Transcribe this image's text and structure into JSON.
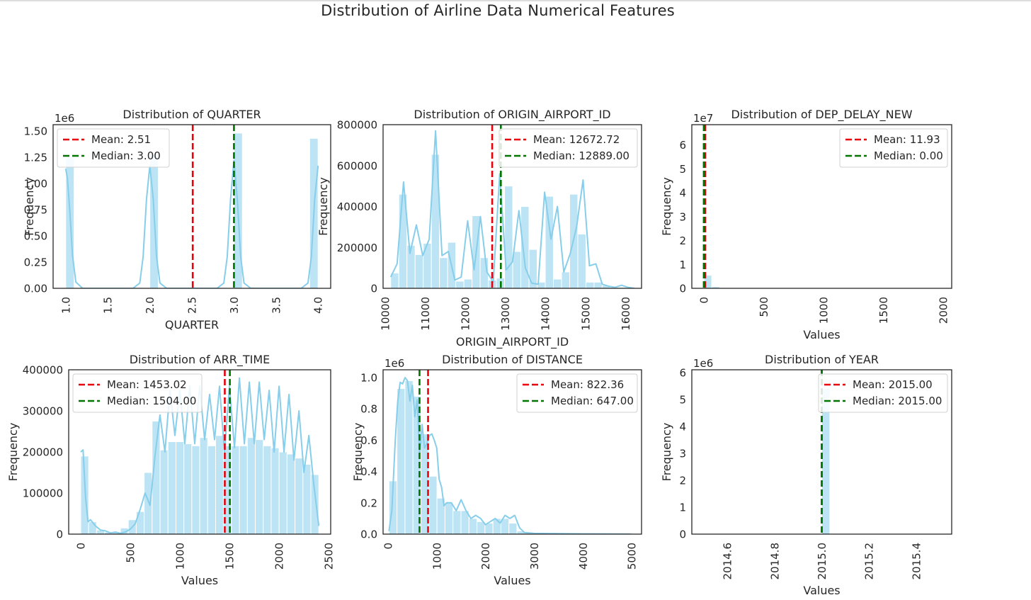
{
  "figure": {
    "suptitle": "Distribution of Airline Data Numerical Features"
  },
  "colors": {
    "bar": "#87ceeb",
    "kde": "#87ceeb",
    "mean": "#e8000b",
    "median": "#007500",
    "frame": "#262626"
  },
  "chart_data": [
    {
      "type": "bar",
      "title": "Distribution of QUARTER",
      "xlabel": "QUARTER",
      "ylabel": "Frequency",
      "xlim": [
        0.85,
        4.15
      ],
      "ylim": [
        0,
        1.56
      ],
      "y_offset_text": "1e6",
      "xticks": [
        1.0,
        1.5,
        2.0,
        2.5,
        3.0,
        3.5,
        4.0
      ],
      "xtick_labels": [
        "1.0",
        "1.5",
        "2.0",
        "2.5",
        "3.0",
        "3.5",
        "4.0"
      ],
      "yticks": [
        0,
        0.25,
        0.5,
        0.75,
        1.0,
        1.25,
        1.5
      ],
      "ytick_labels": [
        "0.00",
        "0.25",
        "0.50",
        "0.75",
        "1.00",
        "1.25",
        "1.50"
      ],
      "bars": {
        "start": 1.0,
        "width": 0.1,
        "values": [
          1.25,
          0,
          0,
          0,
          0,
          0,
          0,
          0,
          0,
          0,
          1.28,
          0,
          0,
          0,
          0,
          0,
          0,
          0,
          0,
          0,
          1.48,
          0,
          0,
          0,
          0,
          0,
          0,
          0,
          0,
          1.43
        ]
      },
      "kde": {
        "x": [
          1.0,
          1.02,
          1.05,
          1.08,
          1.12,
          1.2,
          1.8,
          1.88,
          1.92,
          1.96,
          2.0,
          2.04,
          2.08,
          2.12,
          2.2,
          2.8,
          2.88,
          2.92,
          2.96,
          3.0,
          3.04,
          3.08,
          3.12,
          3.2,
          3.8,
          3.88,
          3.92,
          3.96,
          4.0
        ],
        "y": [
          1.14,
          1.05,
          0.72,
          0.32,
          0.06,
          0,
          0,
          0.05,
          0.3,
          0.85,
          1.17,
          0.85,
          0.3,
          0.05,
          0,
          0,
          0.05,
          0.3,
          0.85,
          1.22,
          0.85,
          0.3,
          0.05,
          0,
          0,
          0.05,
          0.3,
          0.85,
          1.17
        ]
      },
      "mean": 2.51,
      "median": 3.0,
      "legend": {
        "placement": "upper left",
        "mean": "Mean: 2.51",
        "median": "Median: 3.00"
      }
    },
    {
      "type": "bar",
      "title": "Distribution of ORIGIN_AIRPORT_ID",
      "xlabel": "ORIGIN_AIRPORT_ID",
      "ylabel": "Frequency",
      "xlim": [
        9950,
        16400
      ],
      "ylim": [
        0,
        800000
      ],
      "y_offset_text": "",
      "xticks": [
        10000,
        11000,
        12000,
        13000,
        14000,
        15000,
        16000
      ],
      "xtick_labels": [
        "10000",
        "11000",
        "12000",
        "13000",
        "14000",
        "15000",
        "16000"
      ],
      "yticks": [
        0,
        200000,
        400000,
        600000,
        800000
      ],
      "ytick_labels": [
        "0",
        "200000",
        "400000",
        "600000",
        "800000"
      ],
      "bars": {
        "start": 10140,
        "width": 203,
        "values": [
          75000,
          460000,
          210000,
          165000,
          220000,
          655000,
          150000,
          225000,
          35000,
          45000,
          355000,
          150000,
          40000,
          50000,
          500000,
          180000,
          400000,
          190000,
          30000,
          450000,
          45000,
          80000,
          460000,
          265000,
          30000,
          30000,
          15000,
          5000,
          5000,
          2000
        ]
      },
      "kde": {
        "x": [
          10140,
          10300,
          10460,
          10620,
          10780,
          10940,
          11100,
          11260,
          11420,
          11580,
          11740,
          11900,
          12060,
          12220,
          12380,
          12540,
          12700,
          12860,
          13020,
          13180,
          13340,
          13500,
          13660,
          13820,
          13980,
          14140,
          14300,
          14460,
          14620,
          14780,
          14940,
          15100,
          15260,
          15420,
          15580,
          15740,
          15900,
          16060,
          16220
        ],
        "y": [
          55000,
          120000,
          520000,
          170000,
          310000,
          160000,
          240000,
          770000,
          160000,
          180000,
          40000,
          55000,
          330000,
          90000,
          350000,
          80000,
          30000,
          560000,
          90000,
          130000,
          380000,
          100000,
          25000,
          20000,
          470000,
          240000,
          400000,
          80000,
          170000,
          300000,
          530000,
          110000,
          120000,
          20000,
          10000,
          5000,
          15000,
          5000,
          0
        ]
      },
      "mean": 12672.72,
      "median": 12889.0,
      "legend": {
        "placement": "upper right",
        "mean": "Mean: 12672.72",
        "median": "Median: 12889.00"
      }
    },
    {
      "type": "bar",
      "title": "Distribution of DEP_DELAY_NEW",
      "xlabel": "Values",
      "ylabel": "Frequency",
      "xlim": [
        -100,
        2070
      ],
      "ylim": [
        0,
        68500000
      ],
      "y_offset_text": "1e7",
      "xticks": [
        0,
        500,
        1000,
        1500,
        2000
      ],
      "xtick_labels": [
        "0",
        "500",
        "1000",
        "1500",
        "2000"
      ],
      "yticks": [
        0,
        10000000,
        20000000,
        30000000,
        40000000,
        50000000,
        60000000
      ],
      "ytick_labels": [
        "0",
        "1",
        "2",
        "3",
        "4",
        "5",
        "6"
      ],
      "bars": {
        "start": 0,
        "width": 66,
        "values": [
          5500000,
          700000,
          200000,
          80000,
          30000,
          10000,
          5000,
          2000,
          1000,
          500
        ]
      },
      "kde": {
        "x": [],
        "y": []
      },
      "mean": 11.93,
      "median": 0.0,
      "legend": {
        "placement": "upper right",
        "mean": "Mean: 11.93",
        "median": "Median: 0.00"
      }
    },
    {
      "type": "bar",
      "title": "Distribution of ARR_TIME",
      "xlabel": "Values",
      "ylabel": "Frequency",
      "xlim": [
        -120,
        2520
      ],
      "ylim": [
        0,
        400000
      ],
      "y_offset_text": "",
      "xticks": [
        0,
        500,
        1000,
        1500,
        2000,
        2500
      ],
      "xtick_labels": [
        "0",
        "500",
        "1000",
        "1500",
        "2000",
        "2500"
      ],
      "yticks": [
        0,
        100000,
        200000,
        300000,
        400000
      ],
      "ytick_labels": [
        "0",
        "100000",
        "200000",
        "300000",
        "400000"
      ],
      "bars": {
        "start": 1,
        "width": 79.97,
        "values": [
          190000,
          30000,
          10000,
          5000,
          5000,
          15000,
          35000,
          55000,
          150000,
          275000,
          205000,
          225000,
          225000,
          220000,
          215000,
          235000,
          215000,
          240000,
          215000,
          215000,
          215000,
          235000,
          230000,
          215000,
          210000,
          200000,
          195000,
          185000,
          170000,
          145000
        ]
      },
      "kde": {
        "x": [
          1,
          25,
          50,
          75,
          100,
          150,
          200,
          250,
          300,
          350,
          400,
          450,
          500,
          550,
          600,
          650,
          700,
          750,
          800,
          850,
          900,
          950,
          1000,
          1050,
          1100,
          1150,
          1200,
          1250,
          1300,
          1350,
          1400,
          1450,
          1500,
          1550,
          1600,
          1650,
          1700,
          1750,
          1800,
          1850,
          1900,
          1950,
          2000,
          2050,
          2100,
          2150,
          2200,
          2250,
          2300,
          2350,
          2400
        ],
        "y": [
          200000,
          205000,
          90000,
          30000,
          35000,
          20000,
          10000,
          8000,
          3000,
          5000,
          2000,
          5000,
          12000,
          25000,
          60000,
          100000,
          70000,
          190000,
          290000,
          200000,
          350000,
          240000,
          350000,
          220000,
          360000,
          220000,
          360000,
          230000,
          340000,
          230000,
          360000,
          200000,
          360000,
          210000,
          380000,
          220000,
          370000,
          220000,
          370000,
          230000,
          350000,
          200000,
          360000,
          200000,
          340000,
          180000,
          300000,
          150000,
          240000,
          120000,
          20000
        ]
      },
      "mean": 1453.02,
      "median": 1504.0,
      "legend": {
        "placement": "upper left",
        "mean": "Mean: 1453.02",
        "median": "Median: 1504.00"
      }
    },
    {
      "type": "bar",
      "title": "Distribution of DISTANCE",
      "xlabel": "Values",
      "ylabel": "Frequency",
      "xlim": [
        -100,
        5200
      ],
      "ylim": [
        0,
        1.05
      ],
      "y_offset_text": "1e6",
      "xticks": [
        0,
        1000,
        2000,
        3000,
        4000,
        5000
      ],
      "xtick_labels": [
        "0",
        "1000",
        "2000",
        "3000",
        "4000",
        "5000"
      ],
      "yticks": [
        0,
        0.2,
        0.4,
        0.6,
        0.8,
        1.0
      ],
      "ytick_labels": [
        "0.0",
        "0.2",
        "0.4",
        "0.6",
        "0.8",
        "1.0"
      ],
      "bars": {
        "start": 21,
        "width": 164,
        "values": [
          0.34,
          0.93,
          0.98,
          0.88,
          0.64,
          0.37,
          0.23,
          0.2,
          0.15,
          0.15,
          0.1,
          0.08,
          0.07,
          0.1,
          0.1,
          0.07,
          0.02,
          0.01,
          0.005,
          0.005,
          0.005,
          0.005,
          0.004,
          0.004,
          0.004,
          0.003,
          0.003,
          0.003,
          0.002,
          0.002
        ]
      },
      "kde": {
        "x": [
          21,
          80,
          150,
          200,
          250,
          300,
          350,
          400,
          450,
          500,
          550,
          600,
          650,
          700,
          750,
          800,
          850,
          900,
          950,
          1000,
          1050,
          1100,
          1150,
          1200,
          1300,
          1400,
          1500,
          1600,
          1700,
          1800,
          1900,
          2000,
          2100,
          2200,
          2300,
          2400,
          2500,
          2600,
          2700,
          2800,
          3000,
          3500,
          4000,
          4500,
          4983
        ],
        "y": [
          0.02,
          0.15,
          0.6,
          0.85,
          0.97,
          0.96,
          1.0,
          0.98,
          0.85,
          0.95,
          0.75,
          0.86,
          0.5,
          0.7,
          0.55,
          0.58,
          0.63,
          0.64,
          0.6,
          0.55,
          0.35,
          0.3,
          0.18,
          0.2,
          0.2,
          0.15,
          0.22,
          0.15,
          0.1,
          0.12,
          0.1,
          0.06,
          0.08,
          0.1,
          0.07,
          0.12,
          0.1,
          0.12,
          0.04,
          0.01,
          0.005,
          0.003,
          0.002,
          0.001,
          0.0
        ]
      },
      "mean": 822.36,
      "median": 647.0,
      "legend": {
        "placement": "upper right",
        "mean": "Mean: 822.36",
        "median": "Median: 647.00"
      }
    },
    {
      "type": "bar",
      "title": "Distribution of YEAR",
      "xlabel": "Values",
      "ylabel": "Frequency",
      "xlim": [
        2014.45,
        2015.55
      ],
      "ylim": [
        0,
        6.1
      ],
      "y_offset_text": "1e6",
      "xticks": [
        2014.6,
        2014.8,
        2015.0,
        2015.2,
        2015.4
      ],
      "xtick_labels": [
        "2014.6",
        "2014.8",
        "2015.0",
        "2015.2",
        "2015.4"
      ],
      "yticks": [
        0,
        1,
        2,
        3,
        4,
        5,
        6
      ],
      "ytick_labels": [
        "0",
        "1",
        "2",
        "3",
        "4",
        "5",
        "6"
      ],
      "bars": {
        "start": 2015.0,
        "width": 0.034,
        "values": [
          5.4
        ]
      },
      "kde": {
        "x": [],
        "y": []
      },
      "mean": 2015.0,
      "median": 2015.0,
      "legend": {
        "placement": "upper right",
        "mean": "Mean: 2015.00",
        "median": "Median: 2015.00"
      }
    }
  ]
}
